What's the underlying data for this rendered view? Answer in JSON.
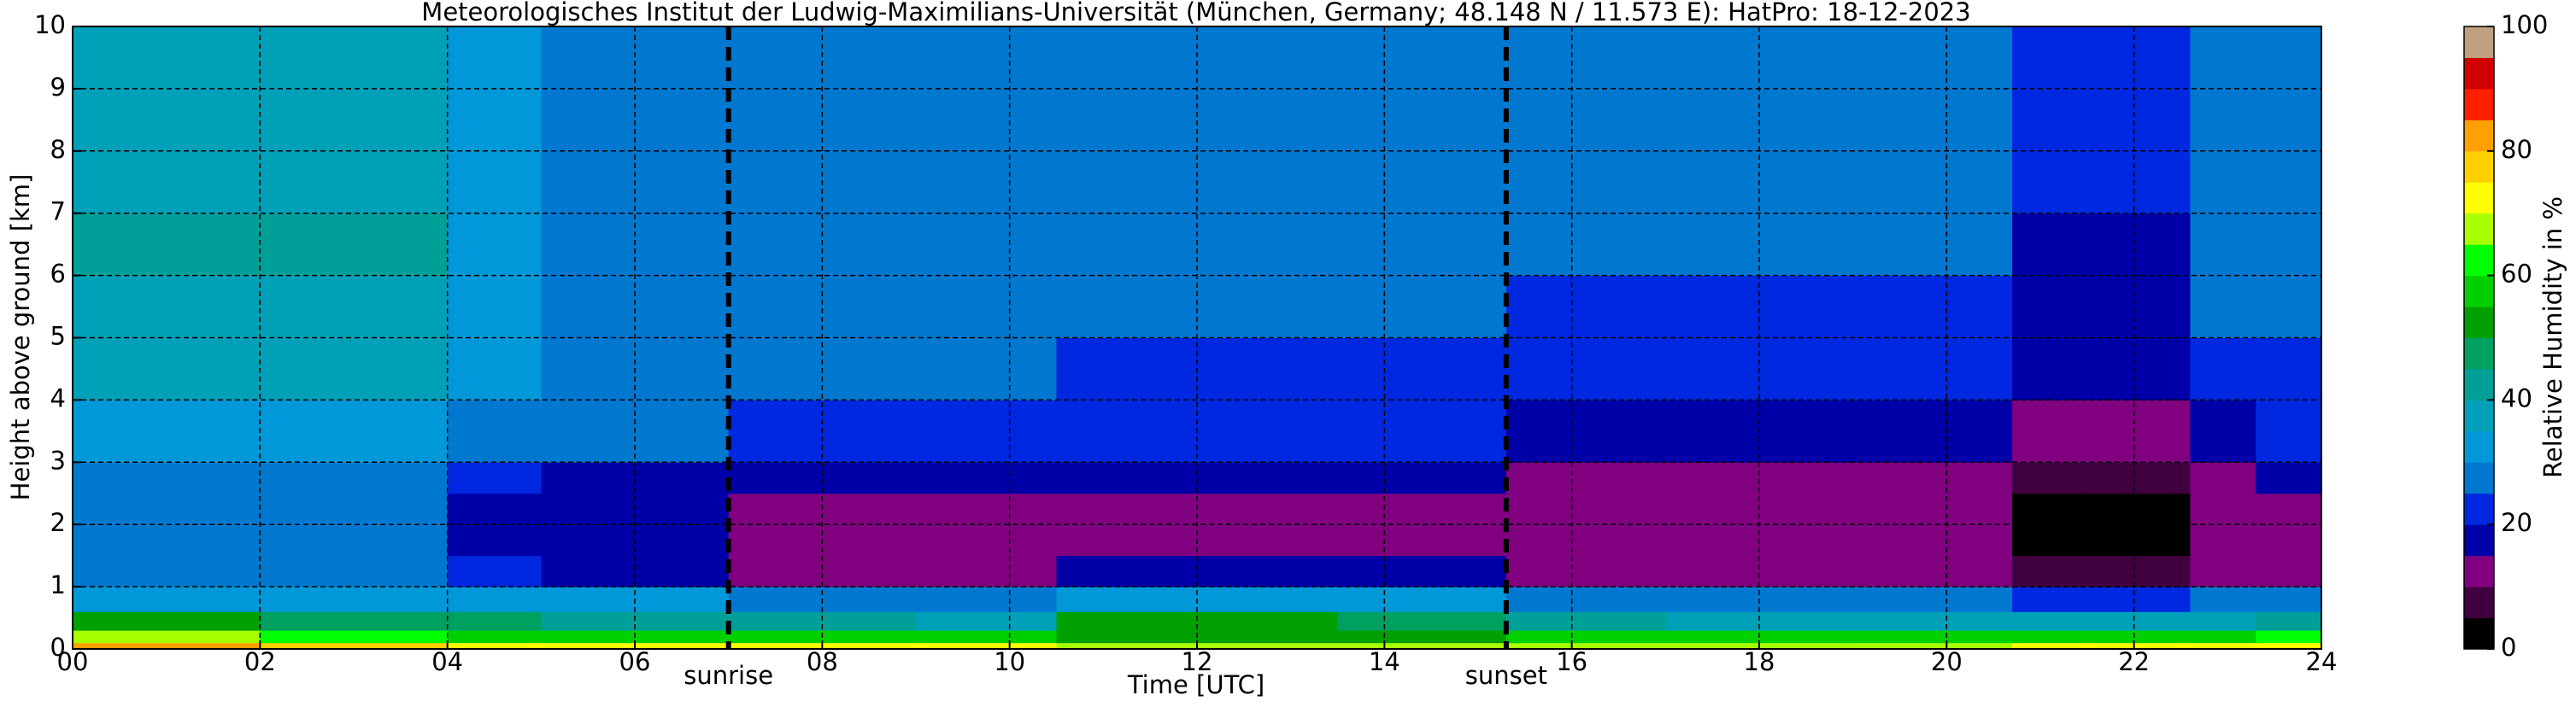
{
  "chart_data": {
    "type": "heatmap",
    "title": "Meteorologisches Institut der Ludwig-Maximilians-Universität (München, Germany; 48.148 N / 11.573 E):    HatPro: 18-12-2023",
    "xlabel": "Time [UTC]",
    "ylabel": "Height above ground [km]",
    "colorbar_label": "Relative Humidity in %",
    "x_edges": [
      0,
      2,
      4,
      5,
      7,
      9,
      10.5,
      12,
      13.5,
      15.3,
      17,
      19,
      20.7,
      21.5,
      22.6,
      23.3,
      24
    ],
    "y_edges": [
      0,
      0.1,
      0.3,
      0.6,
      1,
      1.5,
      2,
      2.5,
      3,
      4,
      5,
      6,
      7,
      8,
      10
    ],
    "z": [
      [
        80,
        75,
        72,
        72,
        70,
        70,
        68,
        68,
        68,
        68,
        68,
        68,
        70,
        70,
        70,
        72
      ],
      [
        65,
        62,
        58,
        58,
        58,
        55,
        52,
        52,
        52,
        55,
        55,
        55,
        58,
        58,
        58,
        60
      ],
      [
        52,
        48,
        45,
        42,
        40,
        38,
        50,
        50,
        48,
        40,
        38,
        38,
        35,
        35,
        38,
        40
      ],
      [
        33,
        33,
        30,
        30,
        27,
        27,
        30,
        30,
        30,
        25,
        25,
        25,
        24,
        24,
        25,
        27
      ],
      [
        28,
        28,
        20,
        18,
        13,
        13,
        18,
        17,
        17,
        13,
        13,
        13,
        6,
        5,
        12,
        14
      ],
      [
        27,
        27,
        18,
        16,
        11,
        11,
        11,
        11,
        11,
        11,
        11,
        11,
        2,
        1,
        11,
        12
      ],
      [
        27,
        27,
        18,
        16,
        10,
        10,
        10,
        10,
        10,
        10,
        10,
        10,
        2,
        2,
        10,
        12
      ],
      [
        28,
        28,
        20,
        18,
        17,
        16,
        15,
        15,
        15,
        12,
        12,
        12,
        8,
        8,
        14,
        16
      ],
      [
        32,
        32,
        27,
        25,
        22,
        22,
        20,
        20,
        20,
        18,
        18,
        18,
        11,
        11,
        18,
        20
      ],
      [
        37,
        37,
        30,
        28,
        27,
        27,
        23,
        23,
        23,
        20,
        20,
        20,
        15,
        15,
        22,
        24
      ],
      [
        38,
        38,
        30,
        29,
        28,
        28,
        25,
        25,
        25,
        24,
        23,
        23,
        17,
        17,
        25,
        26
      ],
      [
        41,
        40,
        30,
        29,
        28,
        28,
        26,
        26,
        26,
        26,
        25,
        25,
        18,
        18,
        26,
        27
      ],
      [
        39,
        39,
        30,
        29,
        28,
        28,
        27,
        27,
        27,
        27,
        26,
        26,
        20,
        20,
        27,
        28
      ],
      [
        38,
        38,
        30,
        29,
        29,
        29,
        28,
        28,
        28,
        28,
        28,
        28,
        24,
        24,
        28,
        29
      ]
    ],
    "xlim": [
      0,
      24
    ],
    "ylim": [
      0,
      10
    ],
    "clim": [
      0,
      100
    ],
    "xticks": [
      {
        "value": 0,
        "label": "00"
      },
      {
        "value": 2,
        "label": "02"
      },
      {
        "value": 4,
        "label": "04"
      },
      {
        "value": 6,
        "label": "06"
      },
      {
        "value": 8,
        "label": "08"
      },
      {
        "value": 10,
        "label": "10"
      },
      {
        "value": 12,
        "label": "12"
      },
      {
        "value": 14,
        "label": "14"
      },
      {
        "value": 16,
        "label": "16"
      },
      {
        "value": 18,
        "label": "18"
      },
      {
        "value": 20,
        "label": "20"
      },
      {
        "value": 22,
        "label": "22"
      },
      {
        "value": 24,
        "label": "24"
      }
    ],
    "yticks": [
      0,
      1,
      2,
      3,
      4,
      5,
      6,
      7,
      8,
      9,
      10
    ],
    "cticks": [
      0,
      20,
      40,
      60,
      80,
      100
    ],
    "grid": true,
    "colorscale": [
      {
        "value": 0,
        "color": "#000000"
      },
      {
        "value": 5,
        "color": "#400040"
      },
      {
        "value": 10,
        "color": "#800080"
      },
      {
        "value": 15,
        "color": "#0000a8"
      },
      {
        "value": 20,
        "color": "#0028e0"
      },
      {
        "value": 25,
        "color": "#0078d0"
      },
      {
        "value": 30,
        "color": "#0098d8"
      },
      {
        "value": 35,
        "color": "#00a0b8"
      },
      {
        "value": 40,
        "color": "#00a098"
      },
      {
        "value": 45,
        "color": "#00a060"
      },
      {
        "value": 50,
        "color": "#00a000"
      },
      {
        "value": 55,
        "color": "#00d000"
      },
      {
        "value": 60,
        "color": "#00ff00"
      },
      {
        "value": 65,
        "color": "#a8ff00"
      },
      {
        "value": 70,
        "color": "#ffff00"
      },
      {
        "value": 75,
        "color": "#ffd000"
      },
      {
        "value": 80,
        "color": "#ffa000"
      },
      {
        "value": 85,
        "color": "#ff2000"
      },
      {
        "value": 90,
        "color": "#d00000"
      },
      {
        "value": 95,
        "color": "#c0a080"
      }
    ],
    "annotations": [
      {
        "x": 7.0,
        "text": "sunrise"
      },
      {
        "x": 15.3,
        "text": "sunset"
      }
    ]
  }
}
